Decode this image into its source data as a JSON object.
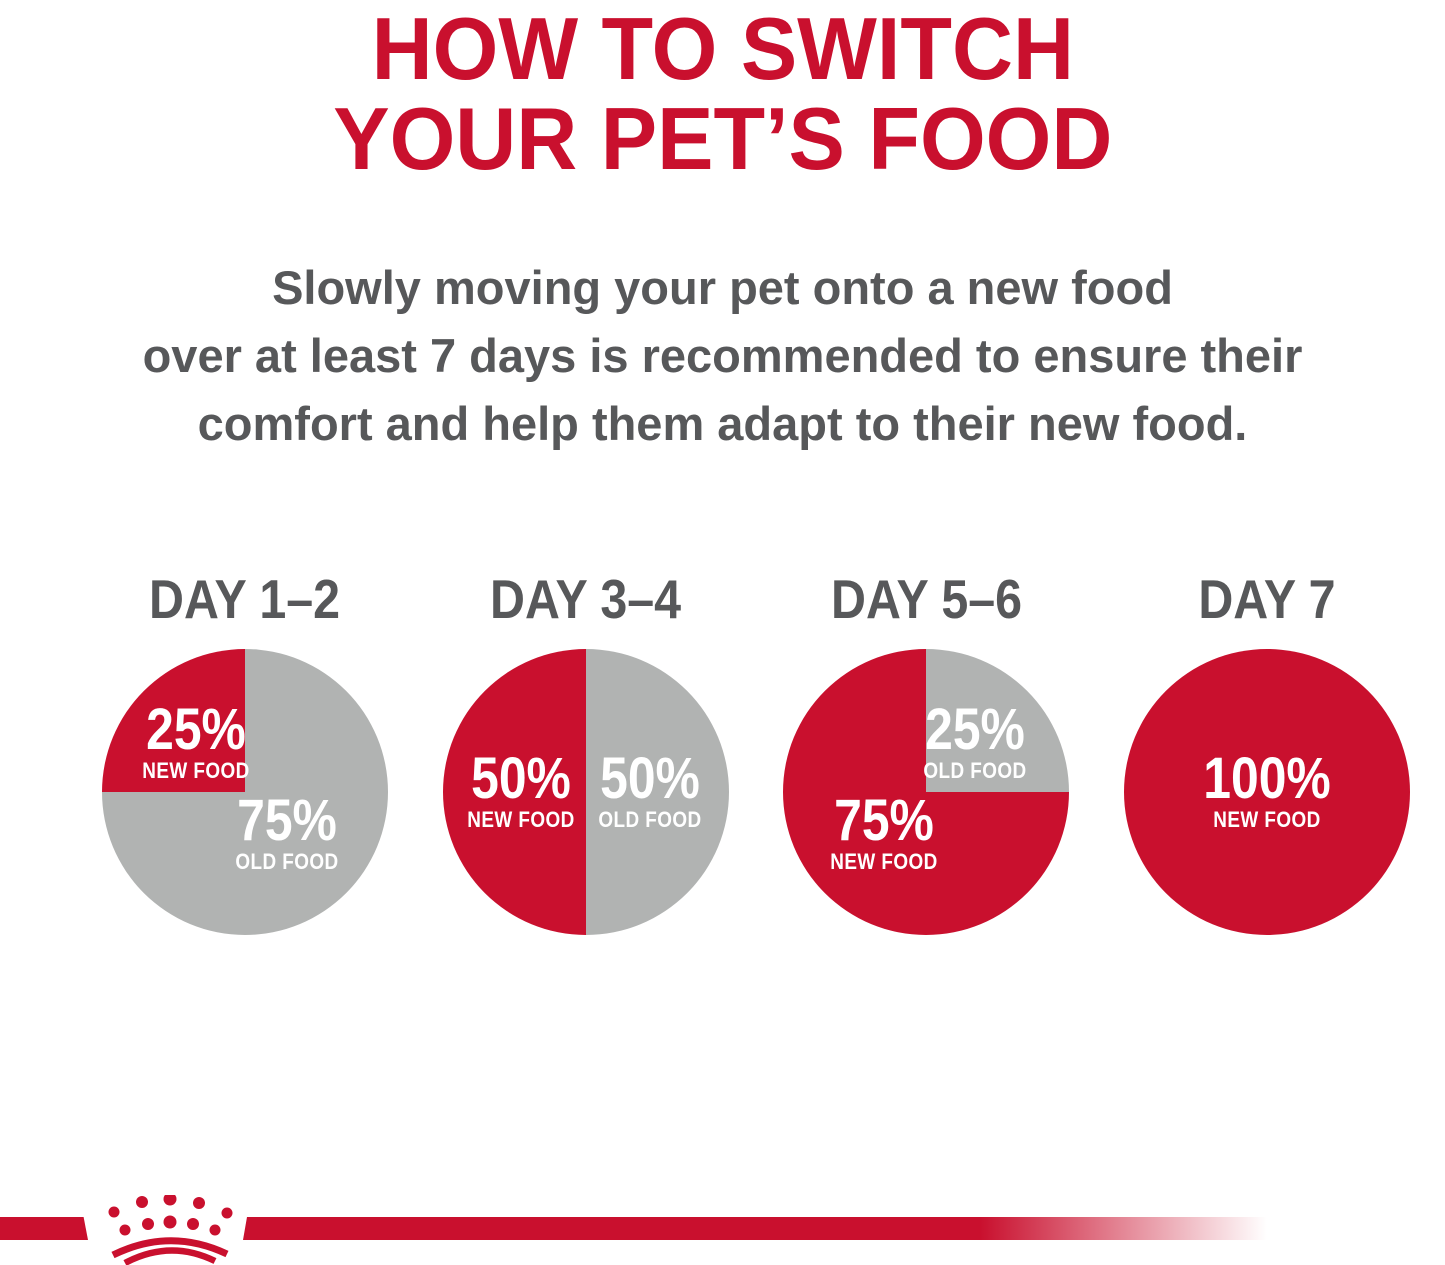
{
  "title": {
    "line1": "HOW TO SWITCH",
    "line2": "YOUR PET’S FOOD"
  },
  "subtitle": {
    "line1": "Slowly moving your pet onto a new food",
    "line2": "over at least 7 days is recommended to ensure their",
    "line3": "comfort and help them adapt to their new food."
  },
  "colors": {
    "brand_red": "#c9102e",
    "slice_gray": "#b1b3b2",
    "text_gray": "#57585a",
    "label_white": "#ffffff"
  },
  "chart_data": [
    {
      "type": "pie",
      "title": "DAY 1–2",
      "start_deg": 270,
      "slices": [
        {
          "label": "NEW FOOD",
          "pct": 25,
          "color": "red"
        },
        {
          "label": "OLD FOOD",
          "pct": 75,
          "color": "gray"
        }
      ]
    },
    {
      "type": "pie",
      "title": "DAY 3–4",
      "start_deg": 180,
      "slices": [
        {
          "label": "NEW FOOD",
          "pct": 50,
          "color": "red"
        },
        {
          "label": "OLD FOOD",
          "pct": 50,
          "color": "gray"
        }
      ]
    },
    {
      "type": "pie",
      "title": "DAY 5–6",
      "start_deg": 0,
      "slices": [
        {
          "label": "OLD FOOD",
          "pct": 25,
          "color": "gray"
        },
        {
          "label": "NEW FOOD",
          "pct": 75,
          "color": "red"
        }
      ]
    },
    {
      "type": "pie",
      "title": "DAY 7",
      "start_deg": 0,
      "slices": [
        {
          "label": "NEW FOOD",
          "pct": 100,
          "color": "red"
        }
      ]
    }
  ],
  "footer": {
    "logo_icon": "royal-canin-crown-logo"
  }
}
